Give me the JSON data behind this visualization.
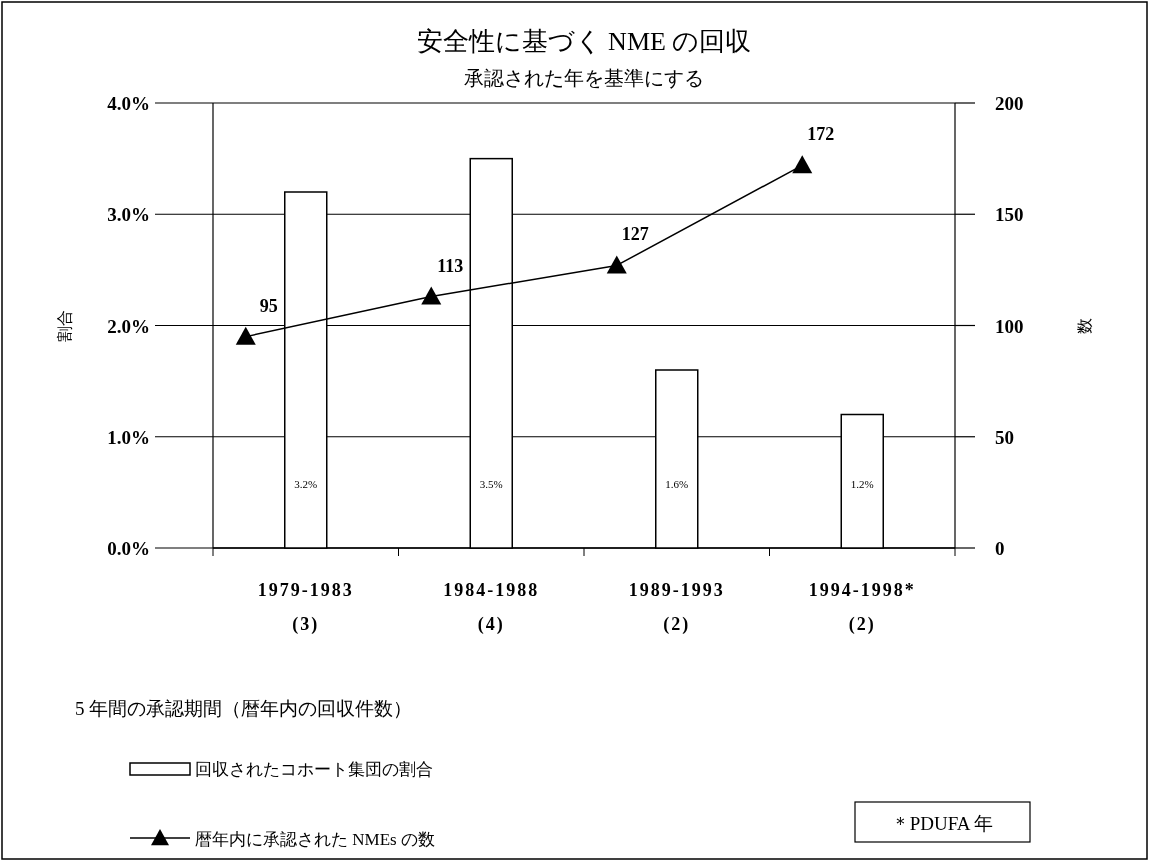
{
  "chart_data": {
    "type": "bar",
    "title": "安全性に基づく NME の回収",
    "subtitle": "承認された年を基準にする",
    "ylabel": "割合",
    "y2label": "数",
    "categories": [
      "1979-1983\n(3)",
      "1984-1988\n(4)",
      "1989-1993\n(2)",
      "1994-1998*\n(2)"
    ],
    "series": [
      {
        "name": "回収されたコホート集団の割合",
        "color": "#ffffff",
        "values": [
          3.2,
          3.5,
          1.6,
          1.2
        ],
        "value_labels": [
          "3.2%",
          "3.5%",
          "1.6%",
          "1.2%"
        ]
      },
      {
        "name": "暦年内に承認された NMEs の数",
        "type": "line",
        "axis": "y2",
        "color": "#000000",
        "marker": "triangle",
        "values": [
          95,
          113,
          127,
          172
        ],
        "value_labels": [
          "95",
          "113",
          "127",
          "172"
        ]
      }
    ],
    "ylim": [
      0,
      4
    ],
    "yticks": [
      {
        "value": 0,
        "label": "0.0%"
      },
      {
        "value": 1,
        "label": "1.0%"
      },
      {
        "value": 2,
        "label": "2.0%"
      },
      {
        "value": 3,
        "label": "3.0%"
      },
      {
        "value": 4,
        "label": "4.0%"
      }
    ],
    "y2lim": [
      0,
      200
    ],
    "y2ticks": [
      0,
      50,
      100,
      150,
      200
    ],
    "grid": "y",
    "legend": "bottom left",
    "annotations": [
      "5 年間の承認期間（暦年内の回収件数）",
      "＊PDUFA 年"
    ]
  }
}
